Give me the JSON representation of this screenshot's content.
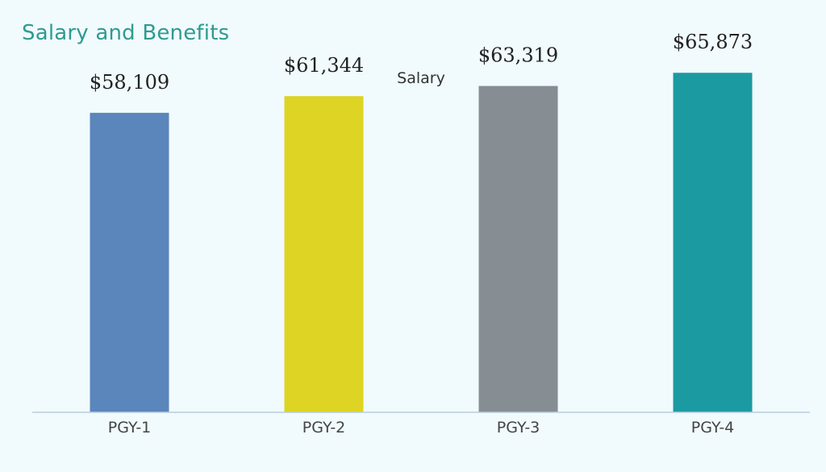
{
  "page": {
    "section_title": "Salary and Benefits"
  },
  "chart_data": {
    "type": "bar",
    "title": "Salary",
    "categories": [
      "PGY-1",
      "PGY-2",
      "PGY-3",
      "PGY-4"
    ],
    "values": [
      58109,
      61344,
      63319,
      65873
    ],
    "value_labels": [
      "$58,109",
      "$61,344",
      "$63,319",
      "$65,873"
    ],
    "colors": [
      "#5b86bb",
      "#ddd423",
      "#878e93",
      "#1b9aa1"
    ],
    "xlabel": "",
    "ylabel": "",
    "ylim": [
      0,
      80000
    ],
    "grid": false,
    "legend": "none"
  }
}
